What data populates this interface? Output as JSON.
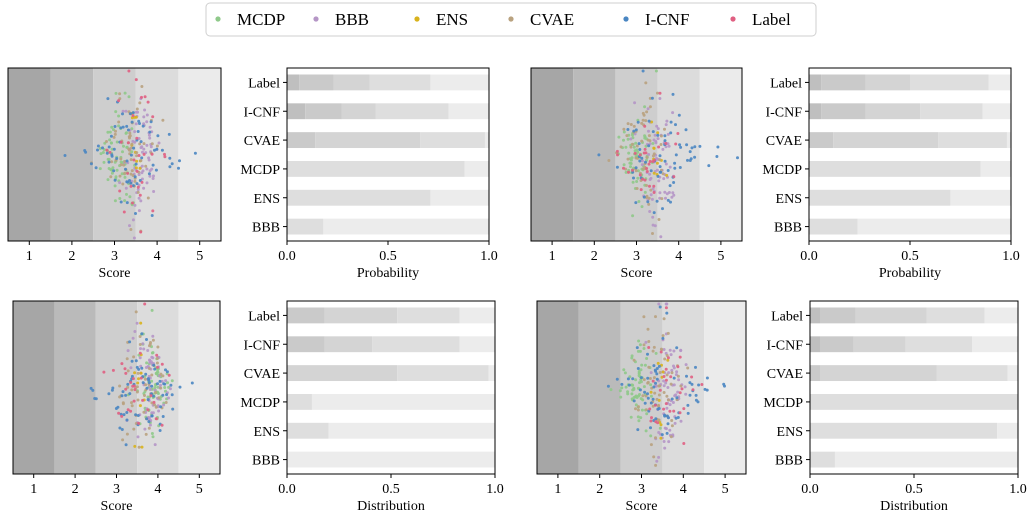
{
  "legend": {
    "items": [
      {
        "name": "MCDP",
        "color": "#8fc98a"
      },
      {
        "name": "BBB",
        "color": "#b596c6"
      },
      {
        "name": "ENS",
        "color": "#d8b21c"
      },
      {
        "name": "CVAE",
        "color": "#b9a27f"
      },
      {
        "name": "I-CNF",
        "color": "#4a86c2"
      },
      {
        "name": "Label",
        "color": "#e05f82"
      }
    ]
  },
  "colors": {
    "band_shades": [
      "#a6a6a6",
      "#bababa",
      "#cecece",
      "#dcdcdc",
      "#ebebeb"
    ],
    "bar_shades": [
      "#bfbfbf",
      "#cacaca",
      "#d4d4d4",
      "#dedede",
      "#ececec"
    ]
  },
  "chart_data": [
    {
      "type": "scatter",
      "id": "swarm-1",
      "xlabel": "Score",
      "xlim": [
        0.5,
        5.5
      ],
      "xticks": [
        "1",
        "2",
        "3",
        "4",
        "5"
      ],
      "score_bands": [
        1,
        2,
        3,
        4,
        5
      ],
      "series": [
        {
          "name": "MCDP",
          "center": 3.1,
          "spread": 0.35,
          "count": 70
        },
        {
          "name": "BBB",
          "center": 3.6,
          "spread": 0.35,
          "count": 70
        },
        {
          "name": "ENS",
          "center": 3.5,
          "spread": 0.15,
          "count": 10
        },
        {
          "name": "CVAE",
          "center": 3.4,
          "spread": 0.45,
          "count": 60
        },
        {
          "name": "I-CNF",
          "center": 3.4,
          "spread": 0.9,
          "count": 70
        },
        {
          "name": "Label",
          "center": 3.5,
          "spread": 0.7,
          "count": 30
        }
      ]
    },
    {
      "type": "bar",
      "id": "stack-1",
      "xlabel": "Probability",
      "xlim": [
        0.0,
        1.0
      ],
      "xticks": [
        "0.0",
        "0.5",
        "1.0"
      ],
      "categories": [
        "Label",
        "I-CNF",
        "CVAE",
        "MCDP",
        "ENS",
        "BBB"
      ],
      "cumulative": [
        [
          0.06,
          0.23,
          0.41,
          0.71,
          1.0
        ],
        [
          0.09,
          0.27,
          0.44,
          0.8,
          1.0
        ],
        [
          0.0,
          0.14,
          0.66,
          0.98,
          1.0
        ],
        [
          0.0,
          0.0,
          0.0,
          0.88,
          1.0
        ],
        [
          0.0,
          0.0,
          0.0,
          0.71,
          1.0
        ],
        [
          0.0,
          0.0,
          0.0,
          0.18,
          1.0
        ]
      ]
    },
    {
      "type": "scatter",
      "id": "swarm-2",
      "xlabel": "Score",
      "xlim": [
        0.5,
        5.5
      ],
      "xticks": [
        "1",
        "2",
        "3",
        "4",
        "5"
      ],
      "score_bands": [
        1,
        2,
        3,
        4,
        5
      ],
      "series": [
        {
          "name": "MCDP",
          "center": 3.0,
          "spread": 0.35,
          "count": 70
        },
        {
          "name": "BBB",
          "center": 3.5,
          "spread": 0.4,
          "count": 70
        },
        {
          "name": "ENS",
          "center": 3.5,
          "spread": 0.15,
          "count": 10
        },
        {
          "name": "CVAE",
          "center": 3.2,
          "spread": 0.5,
          "count": 60
        },
        {
          "name": "I-CNF",
          "center": 3.5,
          "spread": 1.0,
          "count": 70
        },
        {
          "name": "Label",
          "center": 3.3,
          "spread": 0.6,
          "count": 30
        }
      ]
    },
    {
      "type": "bar",
      "id": "stack-2",
      "xlabel": "Probability",
      "xlim": [
        0.0,
        1.0
      ],
      "xticks": [
        "0.0",
        "0.5",
        "1.0"
      ],
      "categories": [
        "Label",
        "I-CNF",
        "CVAE",
        "MCDP",
        "ENS",
        "BBB"
      ],
      "cumulative": [
        [
          0.06,
          0.28,
          0.5,
          0.89,
          1.0
        ],
        [
          0.06,
          0.28,
          0.55,
          0.86,
          1.0
        ],
        [
          0.0,
          0.12,
          0.64,
          0.98,
          1.0
        ],
        [
          0.0,
          0.0,
          0.0,
          0.85,
          1.0
        ],
        [
          0.0,
          0.0,
          0.0,
          0.7,
          1.0
        ],
        [
          0.0,
          0.0,
          0.0,
          0.24,
          1.0
        ]
      ]
    },
    {
      "type": "scatter",
      "id": "swarm-3",
      "xlabel": "Score",
      "xlim": [
        0.5,
        5.5
      ],
      "xticks": [
        "1",
        "2",
        "3",
        "4",
        "5"
      ],
      "score_bands": [
        1,
        2,
        3,
        4,
        5
      ],
      "series": [
        {
          "name": "MCDP",
          "center": 3.9,
          "spread": 0.35,
          "count": 70
        },
        {
          "name": "BBB",
          "center": 3.8,
          "spread": 0.35,
          "count": 70
        },
        {
          "name": "ENS",
          "center": 3.5,
          "spread": 0.12,
          "count": 10
        },
        {
          "name": "CVAE",
          "center": 3.6,
          "spread": 0.45,
          "count": 60
        },
        {
          "name": "I-CNF",
          "center": 3.6,
          "spread": 0.9,
          "count": 70
        },
        {
          "name": "Label",
          "center": 3.5,
          "spread": 0.6,
          "count": 30
        }
      ]
    },
    {
      "type": "bar",
      "id": "stack-3",
      "xlabel": "Distribution",
      "xlim": [
        0.0,
        1.0
      ],
      "xticks": [
        "0.0",
        "0.5",
        "1.0"
      ],
      "categories": [
        "Label",
        "I-CNF",
        "CVAE",
        "MCDP",
        "ENS",
        "BBB"
      ],
      "cumulative": [
        [
          0.0,
          0.18,
          0.53,
          0.83,
          1.0
        ],
        [
          0.0,
          0.18,
          0.41,
          0.83,
          1.0
        ],
        [
          0.0,
          0.0,
          0.53,
          0.97,
          1.0
        ],
        [
          0.0,
          0.0,
          0.0,
          0.12,
          1.0
        ],
        [
          0.0,
          0.0,
          0.0,
          0.2,
          1.0
        ],
        [
          0.0,
          0.0,
          0.0,
          0.0,
          1.0
        ]
      ]
    },
    {
      "type": "scatter",
      "id": "swarm-4",
      "xlabel": "Score",
      "xlim": [
        0.5,
        5.5
      ],
      "xticks": [
        "1",
        "2",
        "3",
        "4",
        "5"
      ],
      "score_bands": [
        1,
        2,
        3,
        4,
        5
      ],
      "series": [
        {
          "name": "MCDP",
          "center": 2.9,
          "spread": 0.35,
          "count": 70
        },
        {
          "name": "BBB",
          "center": 3.7,
          "spread": 0.35,
          "count": 70
        },
        {
          "name": "ENS",
          "center": 3.5,
          "spread": 0.12,
          "count": 10
        },
        {
          "name": "CVAE",
          "center": 3.4,
          "spread": 0.45,
          "count": 60
        },
        {
          "name": "I-CNF",
          "center": 3.5,
          "spread": 0.9,
          "count": 70
        },
        {
          "name": "Label",
          "center": 3.6,
          "spread": 0.6,
          "count": 30
        }
      ]
    },
    {
      "type": "bar",
      "id": "stack-4",
      "xlabel": "Distribution",
      "xlim": [
        0.0,
        1.0
      ],
      "xticks": [
        "0.0",
        "0.5",
        "1.0"
      ],
      "categories": [
        "Label",
        "I-CNF",
        "CVAE",
        "MCDP",
        "ENS",
        "BBB"
      ],
      "cumulative": [
        [
          0.05,
          0.22,
          0.56,
          0.84,
          1.0
        ],
        [
          0.05,
          0.21,
          0.46,
          0.78,
          1.0
        ],
        [
          0.0,
          0.05,
          0.61,
          0.95,
          1.0
        ],
        [
          0.0,
          0.0,
          0.0,
          1.0,
          1.0
        ],
        [
          0.0,
          0.0,
          0.0,
          0.9,
          1.0
        ],
        [
          0.0,
          0.0,
          0.0,
          0.12,
          1.0
        ]
      ]
    }
  ]
}
